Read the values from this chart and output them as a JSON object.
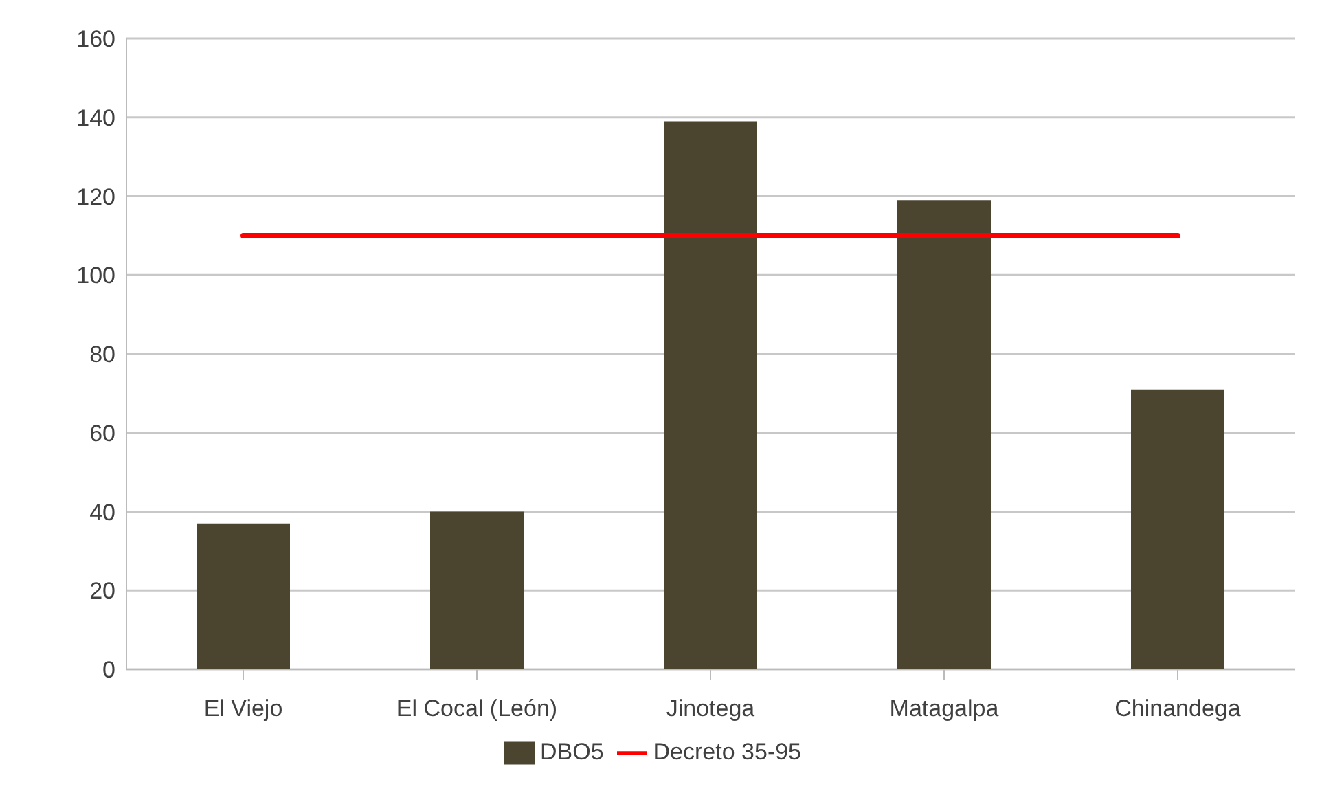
{
  "chart_data": {
    "type": "bar",
    "categories": [
      "El Viejo",
      "El Cocal (León)",
      "Jinotega",
      "Matagalpa",
      "Chinandega"
    ],
    "series": [
      {
        "name": "DBO5",
        "color": "#4b4530",
        "values": [
          37,
          40,
          139,
          119,
          71
        ]
      },
      {
        "name": "Decreto 35-95",
        "type": "line",
        "color": "#ff0000",
        "values": [
          110,
          110,
          110,
          110,
          110
        ]
      }
    ],
    "ylim": [
      0,
      160
    ],
    "yticks": [
      0,
      20,
      40,
      60,
      80,
      100,
      120,
      140,
      160
    ],
    "grid": "y",
    "legend": "bottom",
    "marker": "none"
  }
}
